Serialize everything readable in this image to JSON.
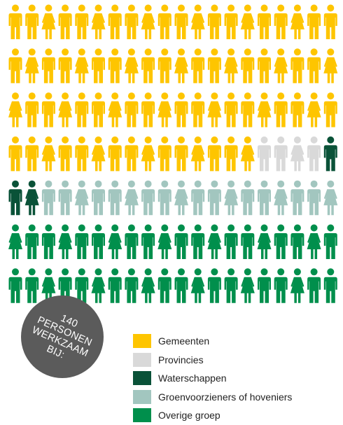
{
  "badge": {
    "line1": "140",
    "line2": "PERSONEN",
    "line3": "WERKZAAM",
    "line4": "BIJ:"
  },
  "chart_data": {
    "type": "pictogram",
    "columns": 20,
    "rows": 7,
    "total": 140,
    "categories": [
      {
        "name": "Gemeenten",
        "value": 75,
        "color": "#fec500"
      },
      {
        "name": "Provincies",
        "value": 4,
        "color": "#d9d9d9"
      },
      {
        "name": "Waterschappen",
        "value": 3,
        "color": "#0a5238"
      },
      {
        "name": "Groenvoorzieners of hoveniers",
        "value": 18,
        "color": "#a2c6bf"
      },
      {
        "name": "Overige groep",
        "value": 40,
        "color": "#008f4c"
      }
    ]
  }
}
